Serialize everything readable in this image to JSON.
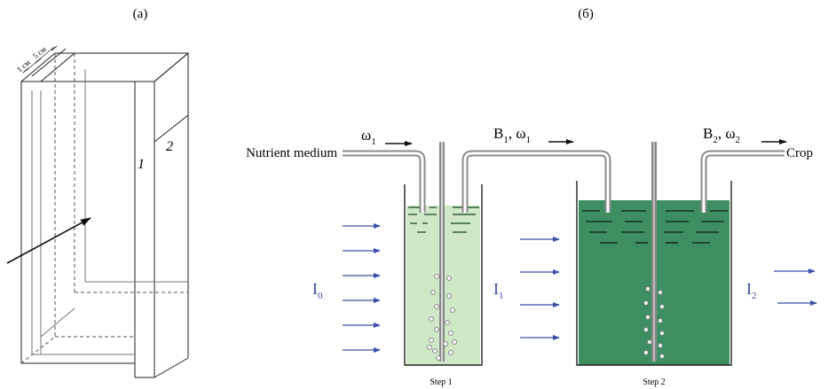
{
  "panels": {
    "a_label": "(a)",
    "b_label": "(б)"
  },
  "cuvette": {
    "dim_1": "1 см",
    "dim_2": "5 см",
    "wall_1": "1",
    "wall_2": "2"
  },
  "labels": {
    "inlet": "Nutrient medium",
    "outlet": "Crop",
    "omega_inlet": {
      "base": "ω",
      "sub": "1"
    },
    "flow_between": {
      "b": "B",
      "b_sub": "1",
      "sep": ", ",
      "w": "ω",
      "w_sub": "1"
    },
    "flow_out": {
      "b": "B",
      "b_sub": "2",
      "sep": ", ",
      "w": "ω",
      "w_sub": "2"
    }
  },
  "intensities": {
    "i0": {
      "base": "I",
      "sub": "0"
    },
    "i1": {
      "base": "I",
      "sub": "1"
    },
    "i2": {
      "base": "I",
      "sub": "2"
    }
  },
  "steps": {
    "step1": "Step 1",
    "step2": "Step 2"
  },
  "colors": {
    "light_arrow": "#3a4fa8",
    "medium_step1": "#cfe8c6",
    "medium_step2": "#3d8f62",
    "tube": "#8a8a8a",
    "outline": "#222222"
  }
}
